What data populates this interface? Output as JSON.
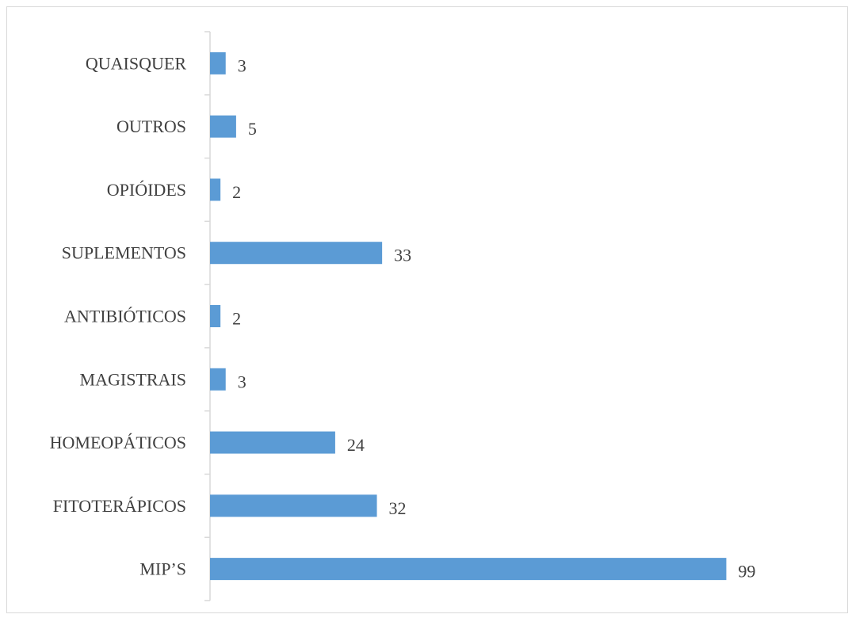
{
  "chart_data": {
    "type": "bar",
    "orientation": "horizontal",
    "title": "",
    "xlabel": "",
    "ylabel": "",
    "categories": [
      "MIP’S",
      "FITOTERÁPICOS",
      "HOMEOPÁTICOS",
      "MAGISTRAIS",
      "ANTIBIÓTICOS",
      "SUPLEMENTOS",
      "OPIÓIDES",
      "OUTROS",
      "QUAISQUER"
    ],
    "values": [
      99,
      32,
      24,
      3,
      2,
      33,
      2,
      5,
      3
    ],
    "xlim": [
      0,
      110
    ],
    "grid": false,
    "legend": "none",
    "data_labels": true,
    "bar_color": "#5b9bd5",
    "axis_color": "#d9d9d9",
    "text_color": "#404040"
  }
}
